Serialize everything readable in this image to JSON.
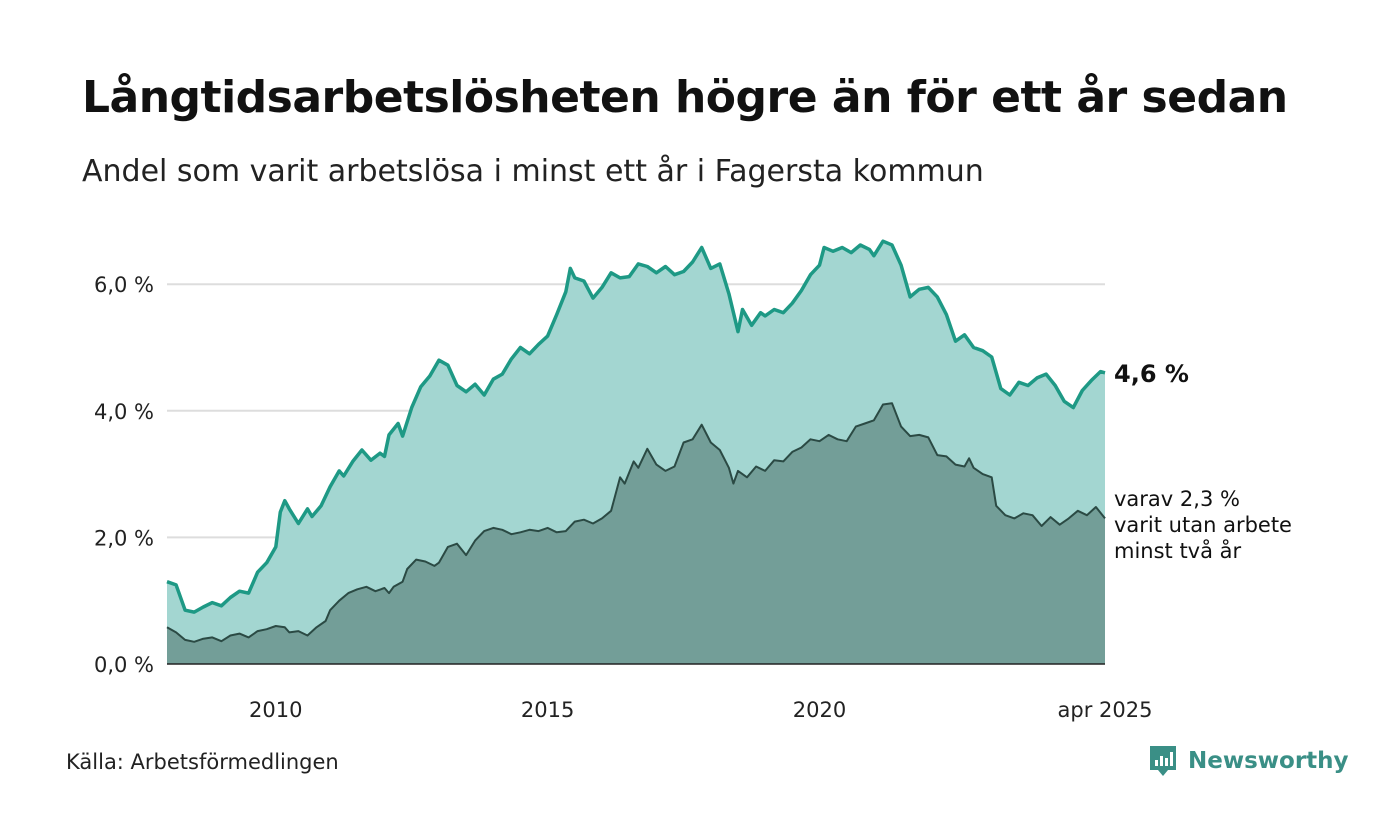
{
  "title": "Långtidsarbetslösheten högre än för ett år sedan",
  "subtitle": "Andel som varit arbetslösa i minst ett år i Fagersta kommun",
  "source": "Källa: Arbetsförmedlingen",
  "brand": "Newsworthy",
  "colors": {
    "total_line": "#1e9985",
    "total_fill": "#a3d6d1",
    "sub_line": "#2b4a44",
    "sub_fill": "#739e98",
    "grid": "#dddddd",
    "brand": "#3a8f86"
  },
  "chart_data": {
    "type": "area",
    "x_start": "2008-01",
    "x_end": "2025-04",
    "x_ticks": [
      {
        "x": "2010-01",
        "label": "2010"
      },
      {
        "x": "2015-01",
        "label": "2015"
      },
      {
        "x": "2020-01",
        "label": "2020"
      },
      {
        "x": "2025-04",
        "label": "apr 2025"
      }
    ],
    "y_ticks": [
      {
        "value": 0,
        "label": "0,0 %"
      },
      {
        "value": 2,
        "label": "2,0 %"
      },
      {
        "value": 4,
        "label": "4,0 %"
      },
      {
        "value": 6,
        "label": "6,0 %"
      }
    ],
    "ylim": [
      0,
      7
    ],
    "grid": true,
    "end_label_total": "4,6 %",
    "end_label_sub": [
      "varav 2,3 %",
      "varit utan arbete",
      "minst två år"
    ],
    "series": [
      {
        "key": "total",
        "points": [
          [
            "2008-01",
            1.3
          ],
          [
            "2008-03",
            1.25
          ],
          [
            "2008-05",
            0.85
          ],
          [
            "2008-07",
            0.82
          ],
          [
            "2008-09",
            0.9
          ],
          [
            "2008-11",
            0.97
          ],
          [
            "2009-01",
            0.92
          ],
          [
            "2009-03",
            1.05
          ],
          [
            "2009-05",
            1.15
          ],
          [
            "2009-07",
            1.12
          ],
          [
            "2009-09",
            1.45
          ],
          [
            "2009-11",
            1.6
          ],
          [
            "2010-01",
            1.85
          ],
          [
            "2010-02",
            2.4
          ],
          [
            "2010-03",
            2.58
          ],
          [
            "2010-04",
            2.45
          ],
          [
            "2010-06",
            2.22
          ],
          [
            "2010-08",
            2.45
          ],
          [
            "2010-09",
            2.33
          ],
          [
            "2010-11",
            2.5
          ],
          [
            "2011-01",
            2.8
          ],
          [
            "2011-03",
            3.05
          ],
          [
            "2011-04",
            2.97
          ],
          [
            "2011-06",
            3.2
          ],
          [
            "2011-08",
            3.38
          ],
          [
            "2011-10",
            3.22
          ],
          [
            "2011-12",
            3.33
          ],
          [
            "2012-01",
            3.28
          ],
          [
            "2012-02",
            3.62
          ],
          [
            "2012-04",
            3.8
          ],
          [
            "2012-05",
            3.6
          ],
          [
            "2012-07",
            4.05
          ],
          [
            "2012-09",
            4.38
          ],
          [
            "2012-11",
            4.55
          ],
          [
            "2013-01",
            4.8
          ],
          [
            "2013-03",
            4.72
          ],
          [
            "2013-05",
            4.4
          ],
          [
            "2013-07",
            4.3
          ],
          [
            "2013-09",
            4.42
          ],
          [
            "2013-11",
            4.25
          ],
          [
            "2014-01",
            4.5
          ],
          [
            "2014-03",
            4.58
          ],
          [
            "2014-05",
            4.82
          ],
          [
            "2014-07",
            5.0
          ],
          [
            "2014-09",
            4.9
          ],
          [
            "2014-11",
            5.05
          ],
          [
            "2015-01",
            5.18
          ],
          [
            "2015-03",
            5.52
          ],
          [
            "2015-05",
            5.88
          ],
          [
            "2015-06",
            6.25
          ],
          [
            "2015-07",
            6.1
          ],
          [
            "2015-09",
            6.05
          ],
          [
            "2015-11",
            5.78
          ],
          [
            "2016-01",
            5.95
          ],
          [
            "2016-03",
            6.18
          ],
          [
            "2016-05",
            6.1
          ],
          [
            "2016-07",
            6.12
          ],
          [
            "2016-09",
            6.32
          ],
          [
            "2016-11",
            6.28
          ],
          [
            "2017-01",
            6.18
          ],
          [
            "2017-03",
            6.28
          ],
          [
            "2017-05",
            6.15
          ],
          [
            "2017-07",
            6.2
          ],
          [
            "2017-09",
            6.35
          ],
          [
            "2017-11",
            6.58
          ],
          [
            "2018-01",
            6.25
          ],
          [
            "2018-03",
            6.32
          ],
          [
            "2018-05",
            5.85
          ],
          [
            "2018-07",
            5.25
          ],
          [
            "2018-08",
            5.6
          ],
          [
            "2018-10",
            5.35
          ],
          [
            "2018-12",
            5.55
          ],
          [
            "2019-01",
            5.5
          ],
          [
            "2019-03",
            5.6
          ],
          [
            "2019-05",
            5.55
          ],
          [
            "2019-07",
            5.7
          ],
          [
            "2019-09",
            5.9
          ],
          [
            "2019-11",
            6.15
          ],
          [
            "2020-01",
            6.3
          ],
          [
            "2020-02",
            6.58
          ],
          [
            "2020-04",
            6.52
          ],
          [
            "2020-06",
            6.58
          ],
          [
            "2020-08",
            6.5
          ],
          [
            "2020-10",
            6.62
          ],
          [
            "2020-12",
            6.55
          ],
          [
            "2021-01",
            6.45
          ],
          [
            "2021-03",
            6.68
          ],
          [
            "2021-05",
            6.62
          ],
          [
            "2021-07",
            6.3
          ],
          [
            "2021-09",
            5.8
          ],
          [
            "2021-11",
            5.92
          ],
          [
            "2022-01",
            5.95
          ],
          [
            "2022-03",
            5.8
          ],
          [
            "2022-05",
            5.52
          ],
          [
            "2022-07",
            5.1
          ],
          [
            "2022-09",
            5.2
          ],
          [
            "2022-11",
            5.0
          ],
          [
            "2023-01",
            4.95
          ],
          [
            "2023-03",
            4.85
          ],
          [
            "2023-05",
            4.35
          ],
          [
            "2023-07",
            4.25
          ],
          [
            "2023-09",
            4.45
          ],
          [
            "2023-11",
            4.4
          ],
          [
            "2024-01",
            4.52
          ],
          [
            "2024-03",
            4.58
          ],
          [
            "2024-05",
            4.4
          ],
          [
            "2024-07",
            4.15
          ],
          [
            "2024-09",
            4.05
          ],
          [
            "2024-11",
            4.32
          ],
          [
            "2025-01",
            4.48
          ],
          [
            "2025-03",
            4.62
          ],
          [
            "2025-04",
            4.6
          ]
        ]
      },
      {
        "key": "sub",
        "points": [
          [
            "2008-01",
            0.58
          ],
          [
            "2008-03",
            0.5
          ],
          [
            "2008-05",
            0.38
          ],
          [
            "2008-07",
            0.35
          ],
          [
            "2008-09",
            0.4
          ],
          [
            "2008-11",
            0.42
          ],
          [
            "2009-01",
            0.36
          ],
          [
            "2009-03",
            0.45
          ],
          [
            "2009-05",
            0.48
          ],
          [
            "2009-07",
            0.42
          ],
          [
            "2009-09",
            0.52
          ],
          [
            "2009-11",
            0.55
          ],
          [
            "2010-01",
            0.6
          ],
          [
            "2010-03",
            0.58
          ],
          [
            "2010-04",
            0.5
          ],
          [
            "2010-06",
            0.52
          ],
          [
            "2010-08",
            0.45
          ],
          [
            "2010-10",
            0.58
          ],
          [
            "2010-12",
            0.68
          ],
          [
            "2011-01",
            0.85
          ],
          [
            "2011-03",
            1.0
          ],
          [
            "2011-05",
            1.12
          ],
          [
            "2011-07",
            1.18
          ],
          [
            "2011-09",
            1.22
          ],
          [
            "2011-11",
            1.15
          ],
          [
            "2012-01",
            1.2
          ],
          [
            "2012-02",
            1.12
          ],
          [
            "2012-03",
            1.22
          ],
          [
            "2012-05",
            1.3
          ],
          [
            "2012-06",
            1.5
          ],
          [
            "2012-08",
            1.65
          ],
          [
            "2012-10",
            1.62
          ],
          [
            "2012-12",
            1.55
          ],
          [
            "2013-01",
            1.6
          ],
          [
            "2013-03",
            1.85
          ],
          [
            "2013-05",
            1.9
          ],
          [
            "2013-07",
            1.72
          ],
          [
            "2013-09",
            1.95
          ],
          [
            "2013-11",
            2.1
          ],
          [
            "2014-01",
            2.15
          ],
          [
            "2014-03",
            2.12
          ],
          [
            "2014-05",
            2.05
          ],
          [
            "2014-07",
            2.08
          ],
          [
            "2014-09",
            2.12
          ],
          [
            "2014-11",
            2.1
          ],
          [
            "2015-01",
            2.15
          ],
          [
            "2015-03",
            2.08
          ],
          [
            "2015-05",
            2.1
          ],
          [
            "2015-07",
            2.25
          ],
          [
            "2015-09",
            2.28
          ],
          [
            "2015-11",
            2.22
          ],
          [
            "2016-01",
            2.3
          ],
          [
            "2016-03",
            2.42
          ],
          [
            "2016-05",
            2.95
          ],
          [
            "2016-06",
            2.85
          ],
          [
            "2016-08",
            3.2
          ],
          [
            "2016-09",
            3.1
          ],
          [
            "2016-11",
            3.4
          ],
          [
            "2017-01",
            3.15
          ],
          [
            "2017-03",
            3.05
          ],
          [
            "2017-05",
            3.12
          ],
          [
            "2017-07",
            3.5
          ],
          [
            "2017-09",
            3.55
          ],
          [
            "2017-11",
            3.78
          ],
          [
            "2018-01",
            3.5
          ],
          [
            "2018-03",
            3.38
          ],
          [
            "2018-05",
            3.1
          ],
          [
            "2018-06",
            2.85
          ],
          [
            "2018-07",
            3.05
          ],
          [
            "2018-09",
            2.95
          ],
          [
            "2018-11",
            3.12
          ],
          [
            "2019-01",
            3.05
          ],
          [
            "2019-03",
            3.22
          ],
          [
            "2019-05",
            3.2
          ],
          [
            "2019-07",
            3.35
          ],
          [
            "2019-09",
            3.42
          ],
          [
            "2019-11",
            3.55
          ],
          [
            "2020-01",
            3.52
          ],
          [
            "2020-03",
            3.62
          ],
          [
            "2020-05",
            3.55
          ],
          [
            "2020-07",
            3.52
          ],
          [
            "2020-09",
            3.75
          ],
          [
            "2020-11",
            3.8
          ],
          [
            "2021-01",
            3.85
          ],
          [
            "2021-03",
            4.1
          ],
          [
            "2021-05",
            4.12
          ],
          [
            "2021-07",
            3.75
          ],
          [
            "2021-09",
            3.6
          ],
          [
            "2021-11",
            3.62
          ],
          [
            "2022-01",
            3.58
          ],
          [
            "2022-03",
            3.3
          ],
          [
            "2022-05",
            3.28
          ],
          [
            "2022-07",
            3.15
          ],
          [
            "2022-09",
            3.12
          ],
          [
            "2022-10",
            3.25
          ],
          [
            "2022-11",
            3.1
          ],
          [
            "2023-01",
            3.0
          ],
          [
            "2023-03",
            2.95
          ],
          [
            "2023-04",
            2.5
          ],
          [
            "2023-06",
            2.35
          ],
          [
            "2023-08",
            2.3
          ],
          [
            "2023-10",
            2.38
          ],
          [
            "2023-12",
            2.35
          ],
          [
            "2024-02",
            2.18
          ],
          [
            "2024-04",
            2.32
          ],
          [
            "2024-06",
            2.2
          ],
          [
            "2024-08",
            2.3
          ],
          [
            "2024-10",
            2.42
          ],
          [
            "2024-12",
            2.35
          ],
          [
            "2025-02",
            2.48
          ],
          [
            "2025-04",
            2.3
          ]
        ]
      }
    ]
  }
}
